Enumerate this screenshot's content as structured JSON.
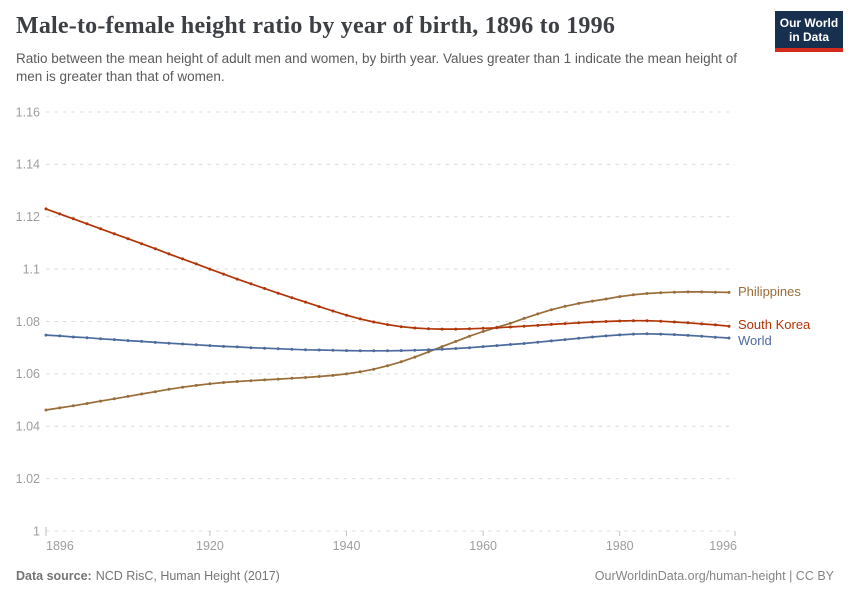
{
  "header": {
    "title": "Male-to-female height ratio by year of birth, 1896 to 1996",
    "subtitle": "Ratio between the mean height of adult men and women, by birth year. Values greater than 1 indicate the mean height of men is greater than that of women.",
    "logo": {
      "line1": "Our World",
      "line2": "in Data",
      "bg_color": "#17304f",
      "bar_color": "#d32b1e"
    }
  },
  "chart_data": {
    "type": "line",
    "title": "Male-to-female height ratio by year of birth, 1896 to 1996",
    "xlabel": "",
    "ylabel": "",
    "x_range": [
      1896,
      1996
    ],
    "y_range": [
      1.0,
      1.16
    ],
    "grid": "horizontal dashed",
    "legend_position": "labels at right end of lines",
    "x_ticks": [
      1896,
      1920,
      1940,
      1960,
      1980,
      1996
    ],
    "y_ticks": [
      "1.16",
      "1.14",
      "1.12",
      "1.1",
      "1.08",
      "1.06",
      "1.04",
      "1.02",
      "1"
    ],
    "x": [
      1896,
      1898,
      1900,
      1902,
      1904,
      1906,
      1908,
      1910,
      1912,
      1914,
      1916,
      1918,
      1920,
      1922,
      1924,
      1926,
      1928,
      1930,
      1932,
      1934,
      1936,
      1938,
      1940,
      1942,
      1944,
      1946,
      1948,
      1950,
      1952,
      1954,
      1956,
      1958,
      1960,
      1962,
      1964,
      1966,
      1968,
      1970,
      1972,
      1974,
      1976,
      1978,
      1980,
      1982,
      1984,
      1986,
      1988,
      1990,
      1992,
      1994,
      1996
    ],
    "series": [
      {
        "name": "Philippines",
        "color": "#996D39",
        "values": [
          1.0462,
          1.047,
          1.0478,
          1.0487,
          1.0496,
          1.0505,
          1.0514,
          1.0523,
          1.0532,
          1.0541,
          1.0549,
          1.0556,
          1.0562,
          1.0567,
          1.0571,
          1.0574,
          1.0577,
          1.058,
          1.0583,
          1.0586,
          1.059,
          1.0594,
          1.06,
          1.0608,
          1.0618,
          1.0631,
          1.0646,
          1.0664,
          1.0684,
          1.0704,
          1.0724,
          1.0744,
          1.0762,
          1.0778,
          1.0793,
          1.0812,
          1.0829,
          1.0845,
          1.0858,
          1.0869,
          1.0878,
          1.0886,
          1.0895,
          1.0902,
          1.0907,
          1.091,
          1.0912,
          1.0913,
          1.0913,
          1.0912,
          1.0911
        ]
      },
      {
        "name": "South Korea",
        "color": "#B13507",
        "values": [
          1.123,
          1.1211,
          1.1192,
          1.1173,
          1.1154,
          1.1135,
          1.1116,
          1.1097,
          1.1078,
          1.1058,
          1.1039,
          1.102,
          1.1,
          1.0981,
          1.0962,
          1.0944,
          1.0926,
          1.0908,
          1.0891,
          1.0874,
          1.0857,
          1.084,
          1.0824,
          1.081,
          1.0798,
          1.0788,
          1.078,
          1.0775,
          1.0772,
          1.0771,
          1.0771,
          1.0772,
          1.0774,
          1.0776,
          1.0779,
          1.0782,
          1.0785,
          1.0789,
          1.0792,
          1.0795,
          1.0798,
          1.08,
          1.0802,
          1.0803,
          1.0803,
          1.0801,
          1.0798,
          1.0795,
          1.0791,
          1.0787,
          1.0782
        ]
      },
      {
        "name": "World",
        "color": "#4C6A9C",
        "values": [
          1.0748,
          1.0745,
          1.0741,
          1.0738,
          1.0734,
          1.0731,
          1.0727,
          1.0724,
          1.072,
          1.0717,
          1.0714,
          1.0711,
          1.0708,
          1.0705,
          1.0703,
          1.07,
          1.0698,
          1.0696,
          1.0694,
          1.0692,
          1.0691,
          1.069,
          1.0689,
          1.0688,
          1.0688,
          1.0688,
          1.0689,
          1.069,
          1.0692,
          1.0694,
          1.0697,
          1.07,
          1.0704,
          1.0708,
          1.0712,
          1.0716,
          1.0721,
          1.0726,
          1.0731,
          1.0736,
          1.0741,
          1.0745,
          1.0749,
          1.0752,
          1.0753,
          1.0752,
          1.075,
          1.0747,
          1.0744,
          1.074,
          1.0737
        ]
      }
    ]
  },
  "footer": {
    "source_label": "Data source:",
    "source_text": "NCD RisC, Human Height (2017)",
    "right_text": "OurWorldinData.org/human-height | CC BY"
  }
}
